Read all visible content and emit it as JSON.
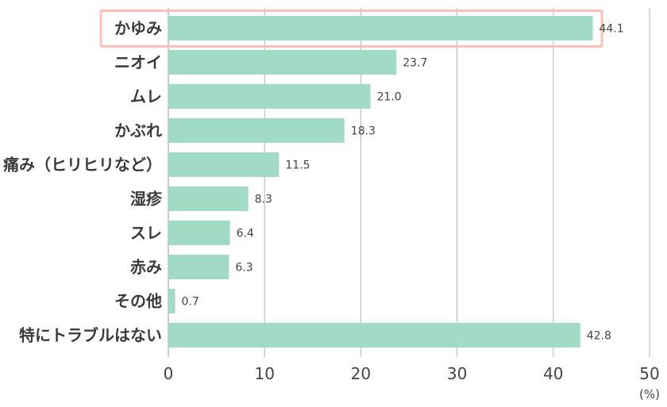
{
  "chart_data": {
    "type": "bar",
    "orientation": "horizontal",
    "categories": [
      "かゆみ",
      "ニオイ",
      "ムレ",
      "かぶれ",
      "痛み（ヒリヒリなど）",
      "湿疹",
      "スレ",
      "赤み",
      "その他",
      "特にトラブルはない"
    ],
    "values": [
      44.1,
      23.7,
      21.0,
      18.3,
      11.5,
      8.3,
      6.4,
      6.3,
      0.7,
      42.8
    ],
    "value_labels": [
      "44.1",
      "23.7",
      "21.0",
      "18.3",
      "11.5",
      "8.3",
      "6.4",
      "6.3",
      "0.7",
      "42.8"
    ],
    "xlim": [
      0,
      50
    ],
    "xticks": [
      0,
      10,
      20,
      30,
      40,
      50
    ],
    "x_unit": "(%)",
    "grid": "vertical",
    "highlighted_category": "かゆみ"
  },
  "colors": {
    "bar": "#a1dbc5",
    "highlight_border": "#f6c3b6",
    "grid": "#b5b5b5",
    "axis": "#9a9a9a"
  }
}
